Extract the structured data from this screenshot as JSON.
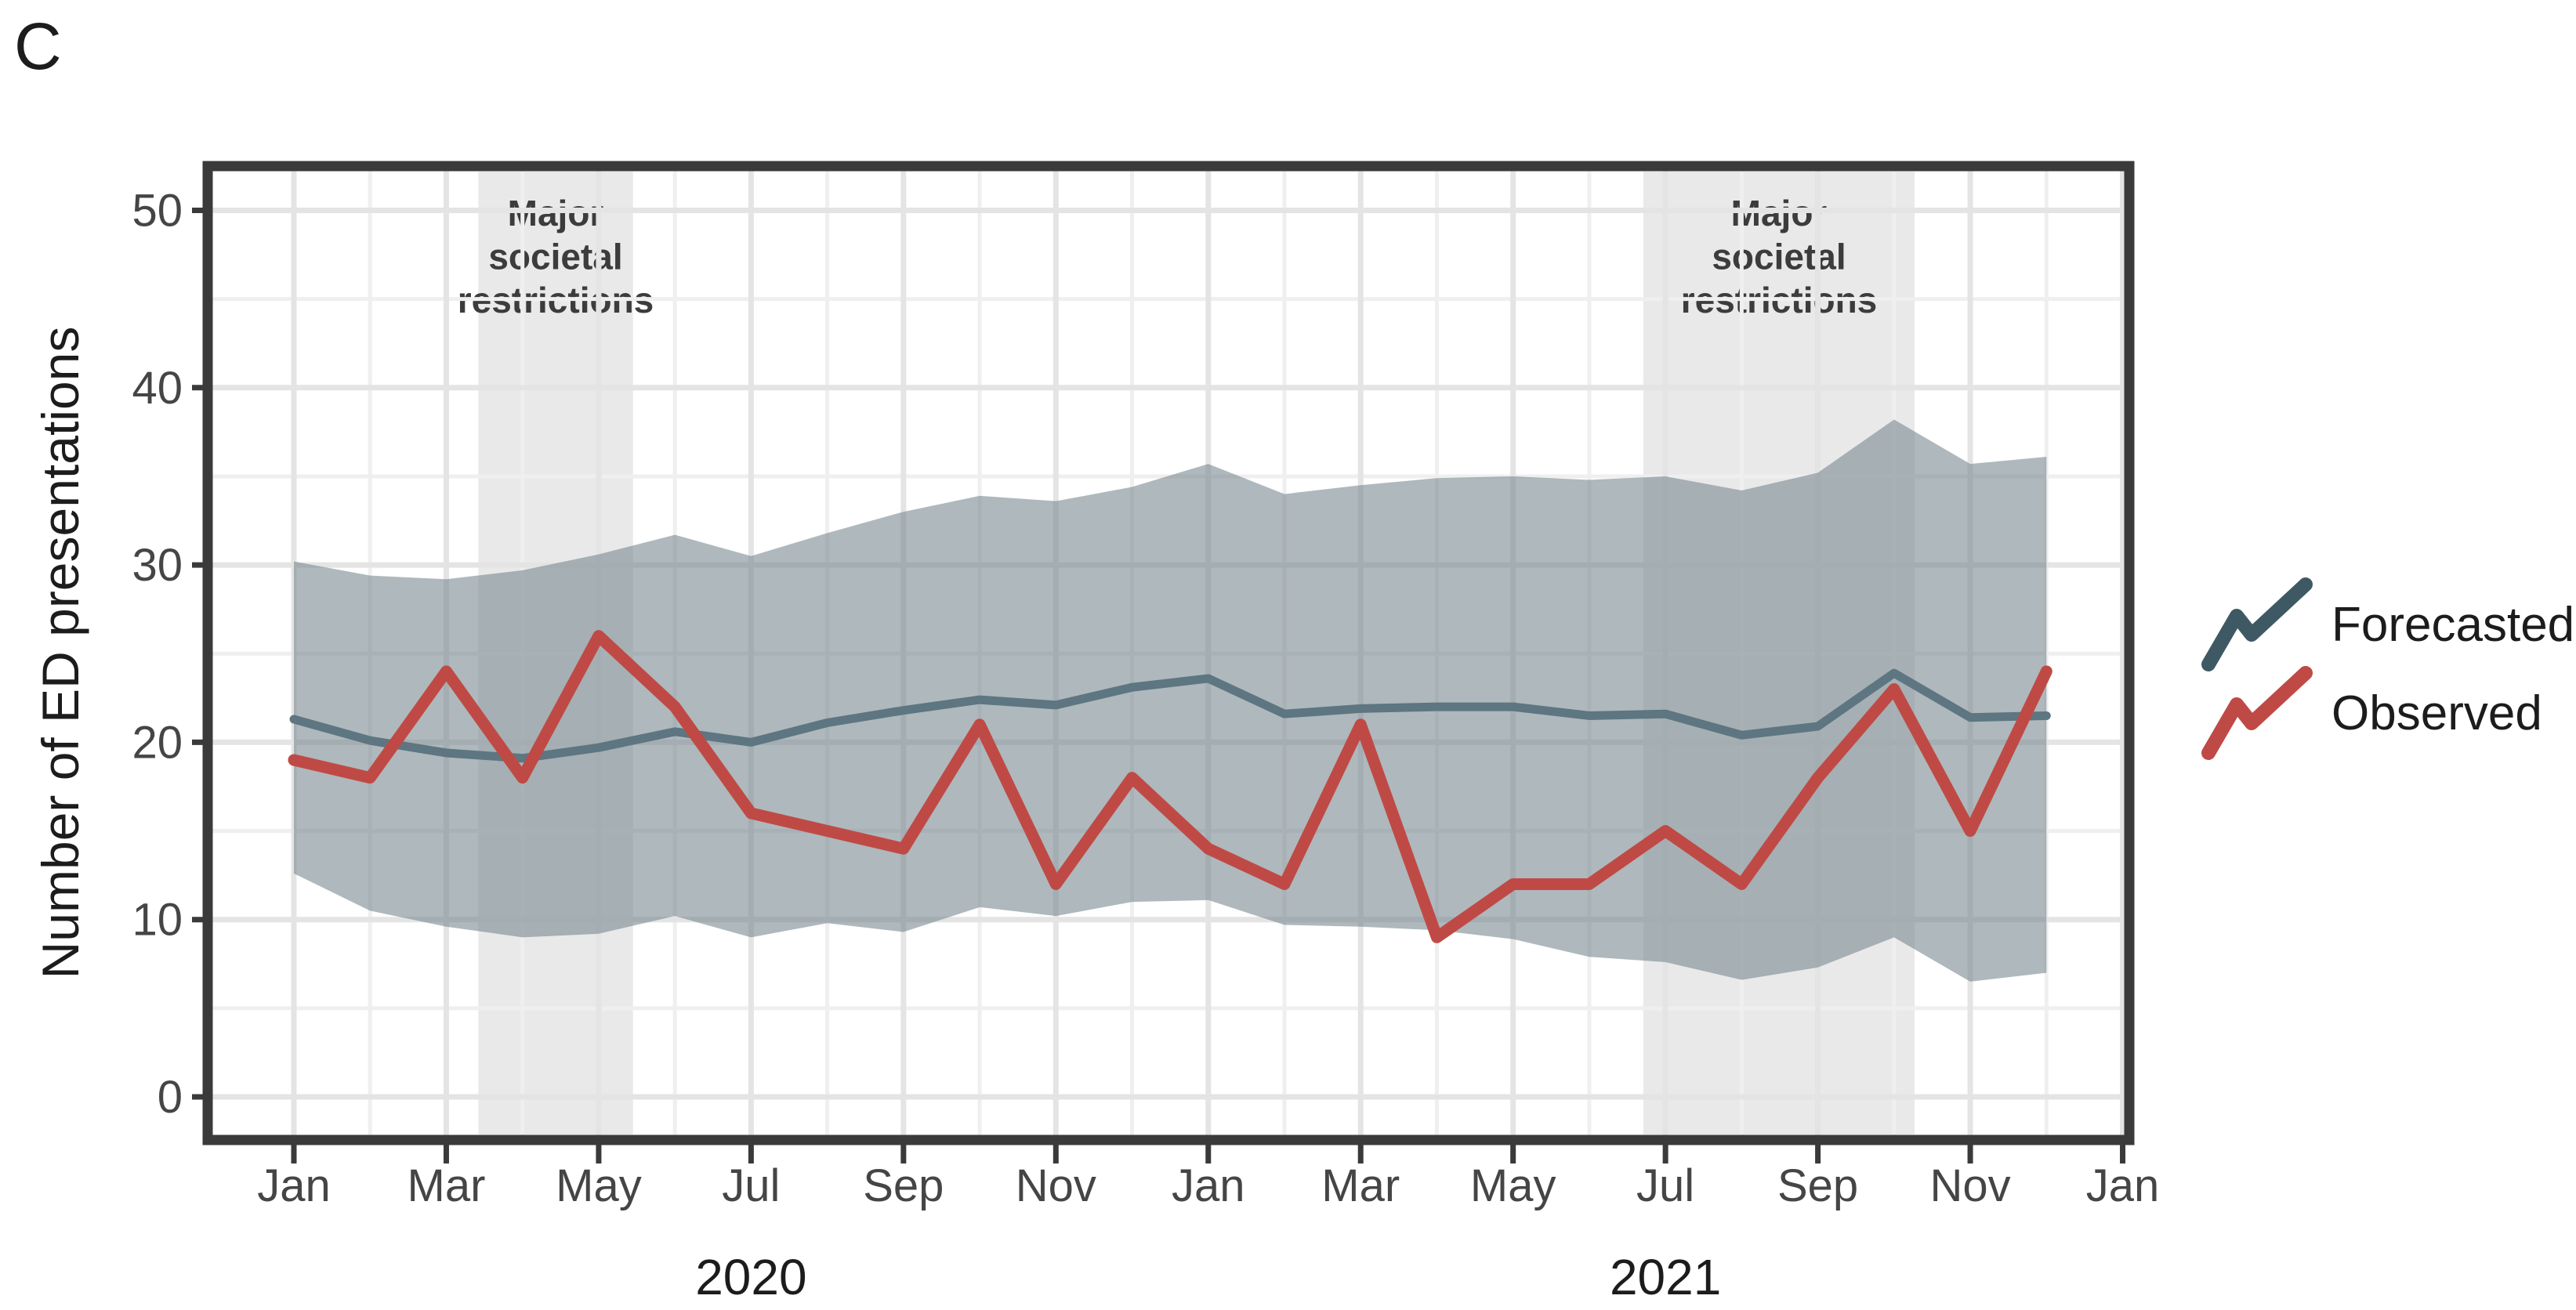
{
  "panel_label": "C",
  "legend": {
    "position": "right",
    "entries": [
      {
        "label": "Forecasted",
        "color": "#3e5963",
        "symbol": "zigzag-line"
      },
      {
        "label": "Observed",
        "color": "#bf4a45",
        "symbol": "zigzag-line"
      }
    ]
  },
  "annotations": {
    "restriction_label_lines": [
      "Major",
      "societal",
      "restrictions"
    ],
    "bands": [
      {
        "from_month_index": 2.42,
        "to_month_index": 4.45
      },
      {
        "from_month_index": 17.71,
        "to_month_index": 21.27
      }
    ]
  },
  "colors": {
    "observed_line": "#bf4a45",
    "forecast_line_on_plot": "#5d7681",
    "forecast_legend": "#3e5963",
    "ribbon_fill": "#75858b",
    "ribbon_opacity": 0.58,
    "restriction_band": "#e9e9e9",
    "grid_major": "#e4e4e4",
    "grid_minor": "#efefef",
    "axis": "#3a3a3a",
    "tick_label_text": "#454545",
    "title_text": "#1c1c1c",
    "annotation_text": "#3c3c3c"
  },
  "chart_data": {
    "type": "line",
    "title": "",
    "xlabel": "",
    "ylabel": "Number of ED presentations",
    "ylim": [
      0,
      50
    ],
    "y_ticks": [
      0,
      10,
      20,
      30,
      40,
      50
    ],
    "y_minor_ticks": [
      5,
      15,
      25,
      35,
      45
    ],
    "grid": true,
    "legend_position": "right",
    "x_tick_labels": [
      "Jan",
      "Mar",
      "May",
      "Jul",
      "Sep",
      "Nov",
      "Jan",
      "Mar",
      "May",
      "Jul",
      "Sep",
      "Nov",
      "Jan"
    ],
    "x_tick_month_indices": [
      0,
      2,
      4,
      6,
      8,
      10,
      12,
      14,
      16,
      18,
      20,
      22,
      24
    ],
    "year_labels": [
      {
        "label": "2020",
        "month_index": 6
      },
      {
        "label": "2021",
        "month_index": 18
      }
    ],
    "months": [
      "Jan 2020",
      "Feb 2020",
      "Mar 2020",
      "Apr 2020",
      "May 2020",
      "Jun 2020",
      "Jul 2020",
      "Aug 2020",
      "Sep 2020",
      "Oct 2020",
      "Nov 2020",
      "Dec 2020",
      "Jan 2021",
      "Feb 2021",
      "Mar 2021",
      "Apr 2021",
      "May 2021",
      "Jun 2021",
      "Jul 2021",
      "Aug 2021",
      "Sep 2021",
      "Oct 2021",
      "Nov 2021",
      "Dec 2021"
    ],
    "series": [
      {
        "name": "Observed",
        "values": [
          19,
          18,
          24,
          18,
          26,
          22,
          16,
          15,
          14,
          21,
          12,
          18,
          14,
          12,
          21,
          9,
          12,
          12,
          15,
          12,
          18,
          23,
          15,
          24
        ]
      },
      {
        "name": "Forecasted",
        "values": [
          21.3,
          20.1,
          19.4,
          19.1,
          19.7,
          20.6,
          20.0,
          21.1,
          21.8,
          22.4,
          22.1,
          23.1,
          23.6,
          21.6,
          21.9,
          22.0,
          22.0,
          21.5,
          21.6,
          20.4,
          20.9,
          23.9,
          21.4,
          21.5
        ]
      },
      {
        "name": "Forecast upper bound",
        "values": [
          30.2,
          29.4,
          29.2,
          29.7,
          30.6,
          31.7,
          30.5,
          31.8,
          33.0,
          33.9,
          33.6,
          34.4,
          35.7,
          34.0,
          34.5,
          34.9,
          35.0,
          34.8,
          35.0,
          34.2,
          35.2,
          38.2,
          35.7,
          36.1
        ]
      },
      {
        "name": "Forecast lower bound",
        "values": [
          12.6,
          10.5,
          9.6,
          9.0,
          9.2,
          10.2,
          9.0,
          9.8,
          9.3,
          10.7,
          10.2,
          11.0,
          11.1,
          9.7,
          9.6,
          9.4,
          8.9,
          7.9,
          7.6,
          6.6,
          7.3,
          9.0,
          6.5,
          7.0
        ]
      }
    ]
  }
}
